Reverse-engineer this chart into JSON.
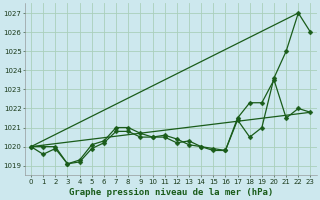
{
  "xlabel": "Graphe pression niveau de la mer (hPa)",
  "bg_color": "#cde8ee",
  "grid_color": "#aacfbb",
  "line_color": "#1a5c1a",
  "xlim": [
    -0.5,
    23.5
  ],
  "ylim": [
    1018.5,
    1027.5
  ],
  "yticks": [
    1019,
    1020,
    1021,
    1022,
    1023,
    1024,
    1025,
    1026,
    1027
  ],
  "xticks": [
    0,
    1,
    2,
    3,
    4,
    5,
    6,
    7,
    8,
    9,
    10,
    11,
    12,
    13,
    14,
    15,
    16,
    17,
    18,
    19,
    20,
    21,
    22,
    23
  ],
  "series": [
    {
      "x": [
        0,
        1,
        2,
        3,
        4,
        5,
        6,
        7,
        8,
        9,
        10,
        11,
        12,
        13,
        14,
        15,
        16,
        17,
        18,
        19,
        20,
        21,
        22,
        23
      ],
      "y": [
        1020.0,
        1019.6,
        1019.9,
        1019.1,
        1019.2,
        1019.9,
        1020.2,
        1020.8,
        1020.8,
        1020.5,
        1020.5,
        1020.5,
        1020.2,
        1020.3,
        1020.0,
        1019.9,
        1019.8,
        1021.4,
        1020.5,
        1021.0,
        1023.6,
        1025.0,
        1027.0,
        1026.0
      ],
      "marker": "D",
      "markersize": 2.5,
      "linewidth": 0.9
    },
    {
      "x": [
        0,
        1,
        2,
        3,
        4,
        5,
        6,
        7,
        8,
        9,
        10,
        11,
        12,
        13,
        14,
        15,
        16,
        17,
        18,
        19,
        20,
        21,
        22,
        23
      ],
      "y": [
        1020.0,
        1020.0,
        1020.0,
        1019.1,
        1019.3,
        1020.1,
        1020.3,
        1021.0,
        1021.0,
        1020.7,
        1020.5,
        1020.6,
        1020.4,
        1020.1,
        1020.0,
        1019.8,
        1019.8,
        1021.5,
        1022.3,
        1022.3,
        1023.5,
        1021.5,
        1022.0,
        1021.8
      ],
      "marker": "D",
      "markersize": 2.5,
      "linewidth": 0.9
    },
    {
      "x": [
        0,
        22
      ],
      "y": [
        1020.0,
        1027.0
      ],
      "marker": null,
      "markersize": 0,
      "linewidth": 0.9
    },
    {
      "x": [
        0,
        23
      ],
      "y": [
        1020.0,
        1021.8
      ],
      "marker": null,
      "markersize": 0,
      "linewidth": 0.9
    }
  ]
}
